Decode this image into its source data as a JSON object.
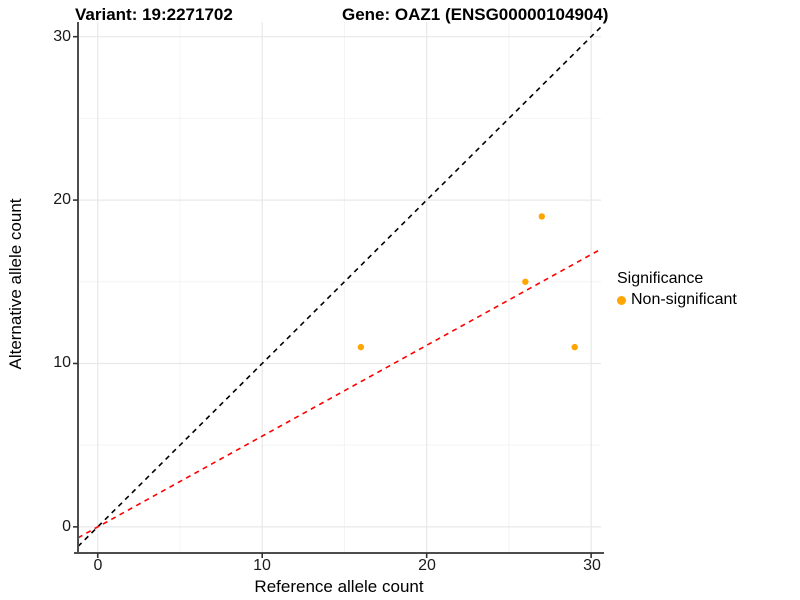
{
  "title": {
    "left": "Variant: 19:2271702",
    "right": "Gene: OAZ1 (ENSG00000104904)"
  },
  "chart_data": {
    "type": "scatter",
    "title_left": "Variant: 19:2271702",
    "title_right": "Gene: OAZ1 (ENSG00000104904)",
    "xlabel": "Reference allele count",
    "ylabel": "Alternative allele count",
    "xlim": [
      -1.2,
      30.6
    ],
    "ylim": [
      -1.6,
      30.9
    ],
    "x_ticks": [
      0,
      10,
      20,
      30
    ],
    "y_ticks": [
      0,
      10,
      20,
      30
    ],
    "x_tick_labels": [
      "0",
      "10",
      "20",
      "30"
    ],
    "y_tick_labels": [
      "0",
      "10",
      "20",
      "30"
    ],
    "minor_ticks": [
      5,
      15,
      25
    ],
    "grid": true,
    "series": [
      {
        "name": "Non-significant",
        "color": "#FFA500",
        "point_radius": 3.2,
        "points": [
          [
            16,
            11
          ],
          [
            26,
            15
          ],
          [
            27,
            19
          ],
          [
            29,
            11
          ]
        ]
      }
    ],
    "lines": [
      {
        "name": "identity-line",
        "color": "#000000",
        "dash": "5,4.5",
        "x1": -1.2,
        "y1": -1.2,
        "x2": 30.6,
        "y2": 30.6
      },
      {
        "name": "fit-line",
        "color": "#FF0000",
        "dash": "5,4.5",
        "x1": -1.2,
        "y1": -0.67,
        "x2": 30.6,
        "y2": 17.0
      }
    ],
    "legend": {
      "title": "Significance",
      "position": "right",
      "items": [
        {
          "label": "Non-significant",
          "color": "#FFA500"
        }
      ]
    },
    "colors": {
      "background": "#FFFFFF",
      "grid_major": "#E8E8E8",
      "grid_minor": "#F4F4F4",
      "axis_line": "#4D4D4D",
      "tick_mark": "#333333",
      "text": "#000000"
    }
  }
}
